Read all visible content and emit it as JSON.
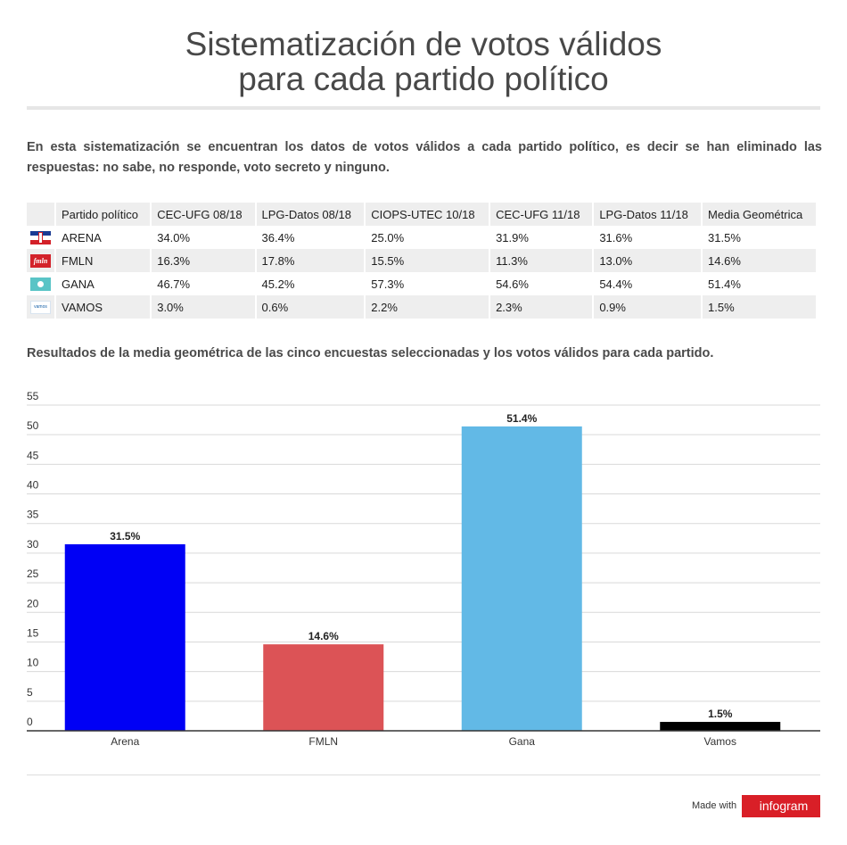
{
  "title": {
    "line1": "Sistematización de votos válidos",
    "line2": "para cada partido político"
  },
  "intro": "En esta sistematización se encuentran los datos de votos válidos a cada partido político, es decir se han eliminado las respuestas: no sabe, no responde, voto secreto y ninguno.",
  "table": {
    "headers": [
      "Partido político",
      "CEC-UFG 08/18",
      "LPG-Datos 08/18",
      "CIOPS-UTEC 10/18",
      "CEC-UFG 11/18",
      "LPG-Datos 11/18",
      "Media Geométrica"
    ],
    "rows": [
      {
        "logo": "arena-flag-logo",
        "cells": [
          "ARENA",
          "34.0%",
          "36.4%",
          "25.0%",
          "31.9%",
          "31.6%",
          "31.5%"
        ]
      },
      {
        "logo": "fmln-logo",
        "logo_text": "fmln",
        "cells": [
          "FMLN",
          "16.3%",
          "17.8%",
          "15.5%",
          "11.3%",
          "13.0%",
          "14.6%"
        ]
      },
      {
        "logo": "gana-logo",
        "cells": [
          "GANA",
          "46.7%",
          "45.2%",
          "57.3%",
          "54.6%",
          "54.4%",
          "51.4%"
        ]
      },
      {
        "logo": "vamos-logo",
        "logo_text": "vamos",
        "cells": [
          "VAMOS",
          "3.0%",
          "0.6%",
          "2.2%",
          "2.3%",
          "0.9%",
          "1.5%"
        ]
      }
    ]
  },
  "chart_subtitle": "Resultados de la media geométrica de las cinco encuestas seleccionadas y los votos válidos para cada partido.",
  "chart_data": {
    "type": "bar",
    "categories": [
      "Arena",
      "FMLN",
      "Gana",
      "Vamos"
    ],
    "values": [
      31.5,
      14.6,
      51.4,
      1.5
    ],
    "value_labels": [
      "31.5%",
      "14.6%",
      "51.4%",
      "1.5%"
    ],
    "colors": [
      "#0000f5",
      "#dc5356",
      "#62b9e6",
      "#000000"
    ],
    "ylim": [
      0,
      55
    ],
    "yticks": [
      0,
      5,
      10,
      15,
      20,
      25,
      30,
      35,
      40,
      45,
      50,
      55
    ],
    "grid": true,
    "legend": "none",
    "title": "",
    "xlabel": "",
    "ylabel": ""
  },
  "footer": {
    "made_with": "Made with",
    "brand": "infogram"
  },
  "colors": {
    "grid": "#d9d9d9",
    "axis": "#333333",
    "brand": "#d91f27"
  }
}
